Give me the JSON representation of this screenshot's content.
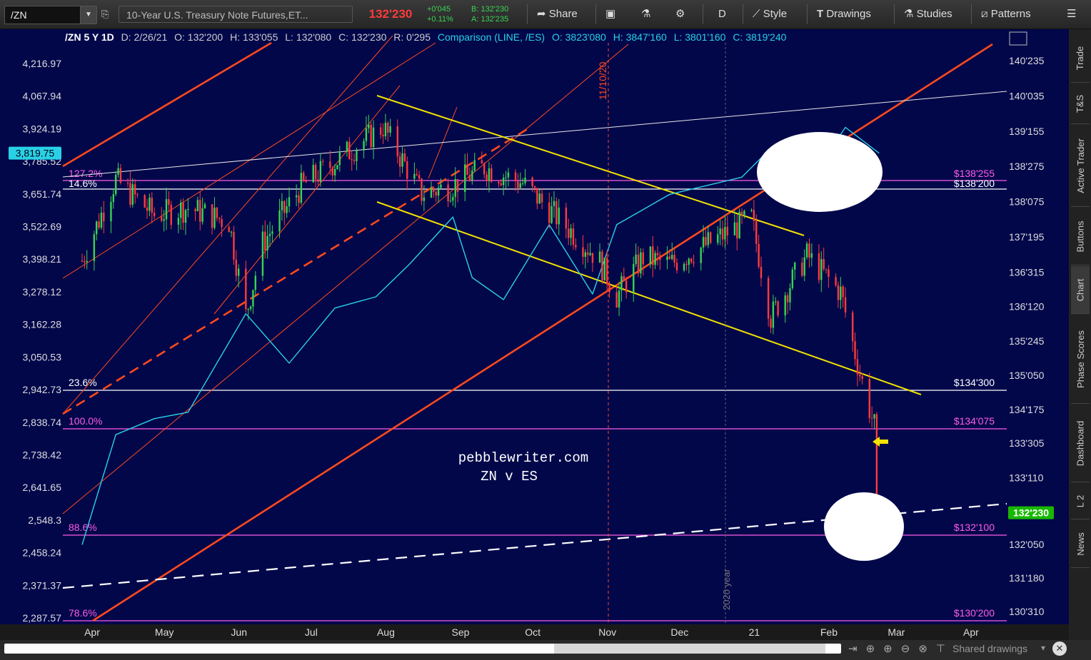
{
  "toolbar": {
    "symbol": "/ZN",
    "description": "10-Year U.S. Treasury Note Futures,ET...",
    "last_price": "132'230",
    "net_change": "+0'045",
    "pct_change": "+0.11%",
    "bid": "B: 132'230",
    "ask": "A: 132'235",
    "share": "Share",
    "aggregation": "D",
    "style": "Style",
    "drawings": "Drawings",
    "studies": "Studies",
    "patterns": "Patterns",
    "colors": {
      "up": "#39d353",
      "down": "#ff3b3b",
      "bg": "#02074a",
      "accent_cyan": "#29d1e6"
    }
  },
  "infobar": {
    "title": "/ZN 5 Y 1D",
    "date": "D: 2/26/21",
    "open": "O: 132'200",
    "high": "H: 133'055",
    "low": "L: 132'080",
    "close": "C: 132'230",
    "range": "R: 0'295",
    "comparison": "Comparison (LINE, /ES)",
    "cmp_open": "O: 3823'080",
    "cmp_high": "H: 3847'160",
    "cmp_low": "L: 3801'160",
    "cmp_close": "C: 3819'240"
  },
  "side_tabs": [
    "Trade",
    "T&S",
    "Active Trader",
    "Buttons",
    "Chart",
    "Phase Scores",
    "Dashboard",
    "L 2",
    "News"
  ],
  "bottom": {
    "shared": "Shared drawings"
  },
  "chart_data": {
    "type": "line",
    "title": "/ZN 5 Y 1D",
    "watermark": [
      "pebblewriter.com",
      "ZN v ES"
    ],
    "x": [
      "Apr",
      "May",
      "Jun",
      "Jul",
      "Aug",
      "Sep",
      "Oct",
      "Nov",
      "Dec",
      "21",
      "Feb",
      "Mar",
      "Apr"
    ],
    "right_axis": {
      "label": "/ZN",
      "ticks": [
        "140'235",
        "140'035",
        "139'155",
        "138'275",
        "138'075",
        "137'195",
        "136'315",
        "136'120",
        "135'245",
        "135'050",
        "134'175",
        "133'305",
        "133'110",
        "132'050",
        "131'180",
        "130'310"
      ],
      "current": "132'230"
    },
    "left_axis": {
      "label": "/ES",
      "ticks": [
        "4,216.97",
        "4,067.94",
        "3,924.19",
        "3,785.52",
        "3,651.74",
        "3,522.69",
        "3,398.21",
        "3,278.12",
        "3,162.28",
        "3,050.53",
        "2,942.73",
        "2,838.74",
        "2,738.42",
        "2,641.65",
        "2,548.3",
        "2,458.24",
        "2,371.37",
        "2,287.57"
      ],
      "current": "3,819.75",
      "scale": "log"
    },
    "fib_levels": [
      {
        "pct": "127.2%",
        "price": "$138'255"
      },
      {
        "pct": "14.6%",
        "price": "$138'200"
      },
      {
        "pct": "23.6%",
        "price": "$134'300"
      },
      {
        "pct": "100.0%",
        "price": "$134'075"
      },
      {
        "pct": "88.6%",
        "price": "$132'100"
      },
      {
        "pct": "78.6%",
        "price": "$130'200"
      }
    ],
    "annotations": [
      "11/10/20",
      "2020 year"
    ],
    "series": [
      {
        "name": "/ZN",
        "type": "candlestick",
        "points": [
          {
            "t": "2020-04-01",
            "v": "137'060"
          },
          {
            "t": "2020-04-15",
            "v": "138'200"
          },
          {
            "t": "2020-05-01",
            "v": "138'000"
          },
          {
            "t": "2020-05-15",
            "v": "138'040"
          },
          {
            "t": "2020-06-01",
            "v": "137'280"
          },
          {
            "t": "2020-06-08",
            "v": "136'070"
          },
          {
            "t": "2020-06-15",
            "v": "137'160"
          },
          {
            "t": "2020-07-01",
            "v": "138'160"
          },
          {
            "t": "2020-07-15",
            "v": "138'300"
          },
          {
            "t": "2020-08-04",
            "v": "139'180"
          },
          {
            "t": "2020-08-20",
            "v": "138'120"
          },
          {
            "t": "2020-09-01",
            "v": "138'160"
          },
          {
            "t": "2020-09-15",
            "v": "138'270"
          },
          {
            "t": "2020-10-01",
            "v": "138'180"
          },
          {
            "t": "2020-10-15",
            "v": "137'310"
          },
          {
            "t": "2020-11-01",
            "v": "137'080"
          },
          {
            "t": "2020-11-09",
            "v": "136'180"
          },
          {
            "t": "2020-11-20",
            "v": "137'080"
          },
          {
            "t": "2020-12-01",
            "v": "137'040"
          },
          {
            "t": "2020-12-15",
            "v": "137'140"
          },
          {
            "t": "2021-01-04",
            "v": "137'300"
          },
          {
            "t": "2021-01-12",
            "v": "136'060"
          },
          {
            "t": "2021-01-27",
            "v": "137'090"
          },
          {
            "t": "2021-02-10",
            "v": "136'200"
          },
          {
            "t": "2021-02-18",
            "v": "135'060"
          },
          {
            "t": "2021-02-24",
            "v": "134'080"
          },
          {
            "t": "2021-02-25",
            "v": "132'100"
          },
          {
            "t": "2021-02-26",
            "v": "132'230"
          }
        ]
      },
      {
        "name": "/ES",
        "type": "line",
        "points": [
          {
            "t": "2020-04-01",
            "v": 2480
          },
          {
            "t": "2020-04-15",
            "v": 2800
          },
          {
            "t": "2020-05-01",
            "v": 2850
          },
          {
            "t": "2020-05-15",
            "v": 2870
          },
          {
            "t": "2020-06-08",
            "v": 3200
          },
          {
            "t": "2020-06-26",
            "v": 3030
          },
          {
            "t": "2020-07-15",
            "v": 3220
          },
          {
            "t": "2020-08-01",
            "v": 3260
          },
          {
            "t": "2020-08-15",
            "v": 3380
          },
          {
            "t": "2020-09-02",
            "v": 3560
          },
          {
            "t": "2020-09-10",
            "v": 3330
          },
          {
            "t": "2020-09-23",
            "v": 3250
          },
          {
            "t": "2020-10-12",
            "v": 3530
          },
          {
            "t": "2020-10-30",
            "v": 3270
          },
          {
            "t": "2020-11-09",
            "v": 3530
          },
          {
            "t": "2020-12-01",
            "v": 3650
          },
          {
            "t": "2020-12-31",
            "v": 3720
          },
          {
            "t": "2021-01-08",
            "v": 3800
          },
          {
            "t": "2021-01-29",
            "v": 3720
          },
          {
            "t": "2021-02-12",
            "v": 3930
          },
          {
            "t": "2021-02-26",
            "v": 3819.75
          }
        ]
      }
    ]
  }
}
